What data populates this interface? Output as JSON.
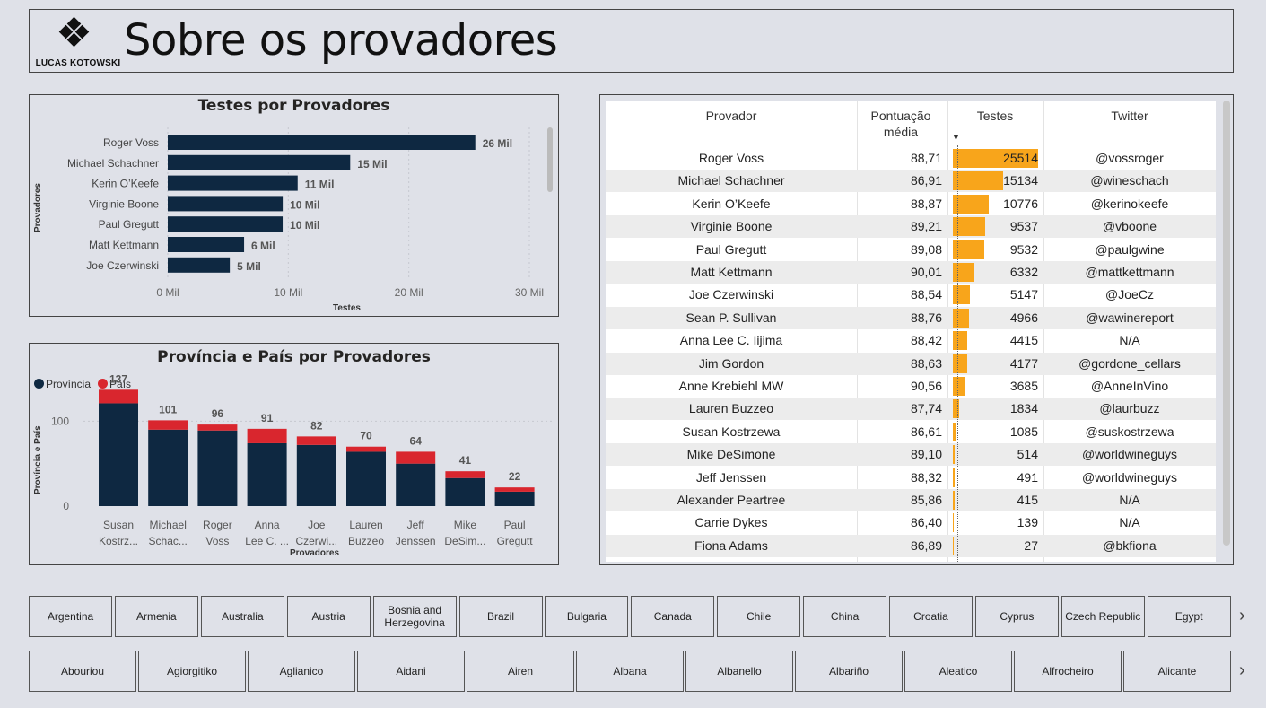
{
  "header": {
    "logo_text": "LUCAS KOTOWSKI",
    "title": "Sobre os provadores"
  },
  "chart1": {
    "title": "Testes por Provadores",
    "ylabel": "Provadores",
    "xlabel": "Testes",
    "ticks": [
      "0 Mil",
      "10 Mil",
      "20 Mil",
      "30 Mil"
    ]
  },
  "chart2": {
    "title": "Província e País por Provadores",
    "ylabel": "Província e País",
    "xlabel": "Provadores",
    "legend": [
      "Província",
      "País"
    ],
    "ticks": [
      "0",
      "100"
    ]
  },
  "chart_data": [
    {
      "type": "bar",
      "orientation": "horizontal",
      "title": "Testes por Provadores",
      "xlabel": "Testes",
      "ylabel": "Provadores",
      "categories": [
        "Roger Voss",
        "Michael Schachner",
        "Kerin O’Keefe",
        "Virginie Boone",
        "Paul Gregutt",
        "Matt Kettmann",
        "Joe Czerwinski"
      ],
      "values": [
        25514,
        15134,
        10776,
        9537,
        9532,
        6332,
        5147
      ],
      "data_labels": [
        "26 Mil",
        "15 Mil",
        "11 Mil",
        "10 Mil",
        "10 Mil",
        "6 Mil",
        "5 Mil"
      ],
      "xlim": [
        0,
        30000
      ],
      "color": "#0e2841"
    },
    {
      "type": "bar",
      "stacked": true,
      "title": "Província e País por Provadores",
      "xlabel": "Provadores",
      "ylabel": "Província e País",
      "categories": [
        "Susan Kostrz...",
        "Michael Schac...",
        "Roger Voss",
        "Anna Lee C. ...",
        "Joe Czerwi...",
        "Lauren Buzzeo",
        "Jeff Jenssen",
        "Mike DeSim...",
        "Paul Gregutt"
      ],
      "category_lines": [
        [
          "Susan",
          "Kostrz..."
        ],
        [
          "Michael",
          "Schac..."
        ],
        [
          "Roger",
          "Voss"
        ],
        [
          "Anna",
          "Lee C. ..."
        ],
        [
          "Joe",
          "Czerwi..."
        ],
        [
          "Lauren",
          "Buzzeo"
        ],
        [
          "Jeff",
          "Jenssen"
        ],
        [
          "Mike",
          "DeSim..."
        ],
        [
          "Paul",
          "Gregutt"
        ]
      ],
      "series": [
        {
          "name": "Província",
          "color": "#0e2841",
          "values": [
            121,
            90,
            89,
            74,
            72,
            64,
            50,
            33,
            17
          ]
        },
        {
          "name": "País",
          "color": "#d9262e",
          "values": [
            16,
            11,
            7,
            17,
            10,
            6,
            14,
            8,
            5
          ]
        }
      ],
      "totals": [
        137,
        101,
        96,
        91,
        82,
        70,
        64,
        41,
        22
      ],
      "ylim": [
        0,
        150
      ]
    }
  ],
  "table": {
    "headers": {
      "name": "Provador",
      "score": "Pontuação média",
      "tests": "Testes",
      "twitter": "Twitter"
    },
    "max_tests": 25514,
    "bar_color": "#f8a51b",
    "rows": [
      {
        "name": "Roger Voss",
        "score": "88,71",
        "tests": 25514,
        "twitter": "@vossroger"
      },
      {
        "name": "Michael Schachner",
        "score": "86,91",
        "tests": 15134,
        "twitter": "@wineschach"
      },
      {
        "name": "Kerin O’Keefe",
        "score": "88,87",
        "tests": 10776,
        "twitter": "@kerinokeefe"
      },
      {
        "name": "Virginie Boone",
        "score": "89,21",
        "tests": 9537,
        "twitter": "@vboone"
      },
      {
        "name": "Paul Gregutt",
        "score": "89,08",
        "tests": 9532,
        "twitter": "@paulgwine"
      },
      {
        "name": "Matt Kettmann",
        "score": "90,01",
        "tests": 6332,
        "twitter": "@mattkettmann"
      },
      {
        "name": "Joe Czerwinski",
        "score": "88,54",
        "tests": 5147,
        "twitter": "@JoeCz"
      },
      {
        "name": "Sean P. Sullivan",
        "score": "88,76",
        "tests": 4966,
        "twitter": "@wawinereport"
      },
      {
        "name": "Anna Lee C. Iijima",
        "score": "88,42",
        "tests": 4415,
        "twitter": "N/A"
      },
      {
        "name": "Jim Gordon",
        "score": "88,63",
        "tests": 4177,
        "twitter": "@gordone_cellars"
      },
      {
        "name": "Anne Krebiehl MW",
        "score": "90,56",
        "tests": 3685,
        "twitter": "@AnneInVino"
      },
      {
        "name": "Lauren Buzzeo",
        "score": "87,74",
        "tests": 1834,
        "twitter": "@laurbuzz"
      },
      {
        "name": "Susan Kostrzewa",
        "score": "86,61",
        "tests": 1085,
        "twitter": "@suskostrzewa"
      },
      {
        "name": "Mike DeSimone",
        "score": "89,10",
        "tests": 514,
        "twitter": "@worldwineguys"
      },
      {
        "name": "Jeff Jenssen",
        "score": "88,32",
        "tests": 491,
        "twitter": "@worldwineguys"
      },
      {
        "name": "Alexander Peartree",
        "score": "85,86",
        "tests": 415,
        "twitter": "N/A"
      },
      {
        "name": "Carrie Dykes",
        "score": "86,40",
        "tests": 139,
        "twitter": "N/A"
      },
      {
        "name": "Fiona Adams",
        "score": "86,89",
        "tests": 27,
        "twitter": "@bkfiona"
      }
    ]
  },
  "slicer_countries": [
    "Argentina",
    "Armenia",
    "Australia",
    "Austria",
    "Bosnia and Herzegovina",
    "Brazil",
    "Bulgaria",
    "Canada",
    "Chile",
    "China",
    "Croatia",
    "Cyprus",
    "Czech Republic",
    "Egypt"
  ],
  "slicer_varieties": [
    "Abouriou",
    "Agiorgitiko",
    "Aglianico",
    "Aidani",
    "Airen",
    "Albana",
    "Albanello",
    "Albariño",
    "Aleatico",
    "Alfrocheiro",
    "Alicante"
  ],
  "icons": {
    "next": "chevron-right-icon"
  }
}
